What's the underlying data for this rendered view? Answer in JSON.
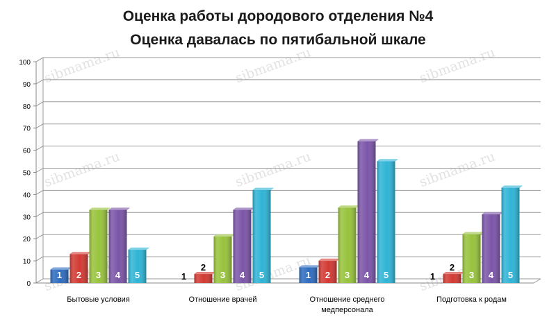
{
  "chart_data": {
    "type": "bar",
    "title": "Оценка работы дородового отделения №4",
    "subtitle": "Оценка давалась по пятибальной шкале",
    "categories": [
      [
        "Бытовые условия"
      ],
      [
        "Отношение врачей"
      ],
      [
        "Отношение среднего",
        "медперсонала"
      ],
      [
        "Подготовка к родам"
      ]
    ],
    "series": [
      {
        "name": "1",
        "color": "#2e6cc0",
        "values": [
          6,
          0,
          7,
          0
        ]
      },
      {
        "name": "2",
        "color": "#d23a33",
        "values": [
          13,
          4,
          10,
          4
        ]
      },
      {
        "name": "3",
        "color": "#98c33c",
        "values": [
          33,
          21,
          34,
          22
        ]
      },
      {
        "name": "4",
        "color": "#7b55a8",
        "values": [
          33,
          33,
          64,
          31
        ]
      },
      {
        "name": "5",
        "color": "#2fb4d6",
        "values": [
          15,
          42,
          55,
          43
        ]
      }
    ],
    "ylim": [
      0,
      100
    ],
    "yticks": [
      0,
      10,
      20,
      30,
      40,
      50,
      60,
      70,
      80,
      90,
      100
    ],
    "grid": true,
    "legend": "none",
    "xlabel": "",
    "ylabel": ""
  },
  "watermark": "sibmama.ru"
}
